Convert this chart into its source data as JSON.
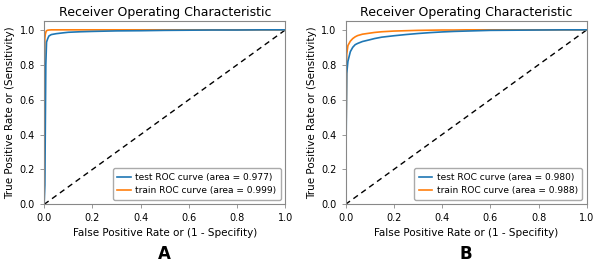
{
  "title": "Receiver Operating Characteristic",
  "xlabel": "False Positive Rate or (1 - Specifity)",
  "ylabel": "True Positive Rate or (Sensitivity)",
  "plot_A": {
    "label": "A",
    "test_label": "test ROC curve (area = 0.977)",
    "train_label": "train ROC curve (area = 0.999)",
    "test_color": "#1f77b4",
    "train_color": "#ff7f0e",
    "test_curve": {
      "fpr": [
        0.0,
        0.003,
        0.007,
        0.01,
        0.015,
        0.02,
        0.03,
        0.05,
        0.08,
        0.1,
        0.15,
        0.2,
        0.3,
        0.4,
        0.5,
        0.6,
        0.7,
        0.8,
        0.9,
        1.0
      ],
      "tpr": [
        0.0,
        0.11,
        0.8,
        0.93,
        0.95,
        0.965,
        0.973,
        0.978,
        0.983,
        0.986,
        0.989,
        0.991,
        0.994,
        0.995,
        0.997,
        0.998,
        0.999,
        0.999,
        1.0,
        1.0
      ]
    },
    "train_curve": {
      "fpr": [
        0.0,
        0.003,
        0.005,
        0.008,
        0.01,
        0.015,
        0.02,
        0.03,
        0.05,
        0.1,
        0.2,
        0.3,
        0.4,
        0.5,
        0.6,
        0.7,
        0.8,
        0.9,
        1.0
      ],
      "tpr": [
        0.0,
        0.95,
        0.975,
        0.99,
        0.995,
        0.998,
        0.999,
        1.0,
        1.0,
        1.0,
        1.0,
        1.0,
        1.0,
        1.0,
        1.0,
        1.0,
        1.0,
        1.0,
        1.0
      ]
    }
  },
  "plot_B": {
    "label": "B",
    "test_label": "test ROC curve (area = 0.980)",
    "train_label": "train ROC curve (area = 0.988)",
    "test_color": "#1f77b4",
    "train_color": "#ff7f0e",
    "test_curve": {
      "fpr": [
        0.0,
        0.005,
        0.01,
        0.02,
        0.03,
        0.04,
        0.05,
        0.07,
        0.1,
        0.12,
        0.15,
        0.2,
        0.25,
        0.3,
        0.35,
        0.4,
        0.45,
        0.5,
        0.55,
        0.6,
        0.7,
        0.8,
        0.9,
        1.0
      ],
      "tpr": [
        0.0,
        0.75,
        0.82,
        0.875,
        0.9,
        0.915,
        0.922,
        0.933,
        0.943,
        0.95,
        0.958,
        0.966,
        0.973,
        0.979,
        0.984,
        0.988,
        0.991,
        0.993,
        0.995,
        0.997,
        0.998,
        0.999,
        1.0,
        1.0
      ]
    },
    "train_curve": {
      "fpr": [
        0.0,
        0.005,
        0.01,
        0.02,
        0.03,
        0.04,
        0.05,
        0.07,
        0.1,
        0.12,
        0.15,
        0.2,
        0.25,
        0.3,
        0.35,
        0.4,
        0.45,
        0.5,
        0.6,
        0.7,
        0.8,
        0.9,
        1.0
      ],
      "tpr": [
        0.0,
        0.86,
        0.91,
        0.935,
        0.95,
        0.96,
        0.967,
        0.975,
        0.981,
        0.985,
        0.989,
        0.993,
        0.995,
        0.997,
        0.998,
        0.999,
        0.999,
        1.0,
        1.0,
        1.0,
        1.0,
        1.0,
        1.0
      ]
    }
  },
  "diagonal": {
    "fpr": [
      0.0,
      1.0
    ],
    "tpr": [
      0.0,
      1.0
    ]
  },
  "xlim": [
    0.0,
    1.0
  ],
  "ylim": [
    0.0,
    1.05
  ],
  "xticks": [
    0.0,
    0.2,
    0.4,
    0.6,
    0.8,
    1.0
  ],
  "yticks": [
    0.0,
    0.2,
    0.4,
    0.6,
    0.8,
    1.0
  ],
  "legend_loc": "lower right",
  "bg_color": "#ffffff",
  "axes_bg_color": "#ffffff",
  "spine_color": "#888888",
  "label_fontsize": 7.5,
  "tick_fontsize": 7,
  "title_fontsize": 9,
  "legend_fontsize": 6.5,
  "subplot_label_fontsize": 12
}
